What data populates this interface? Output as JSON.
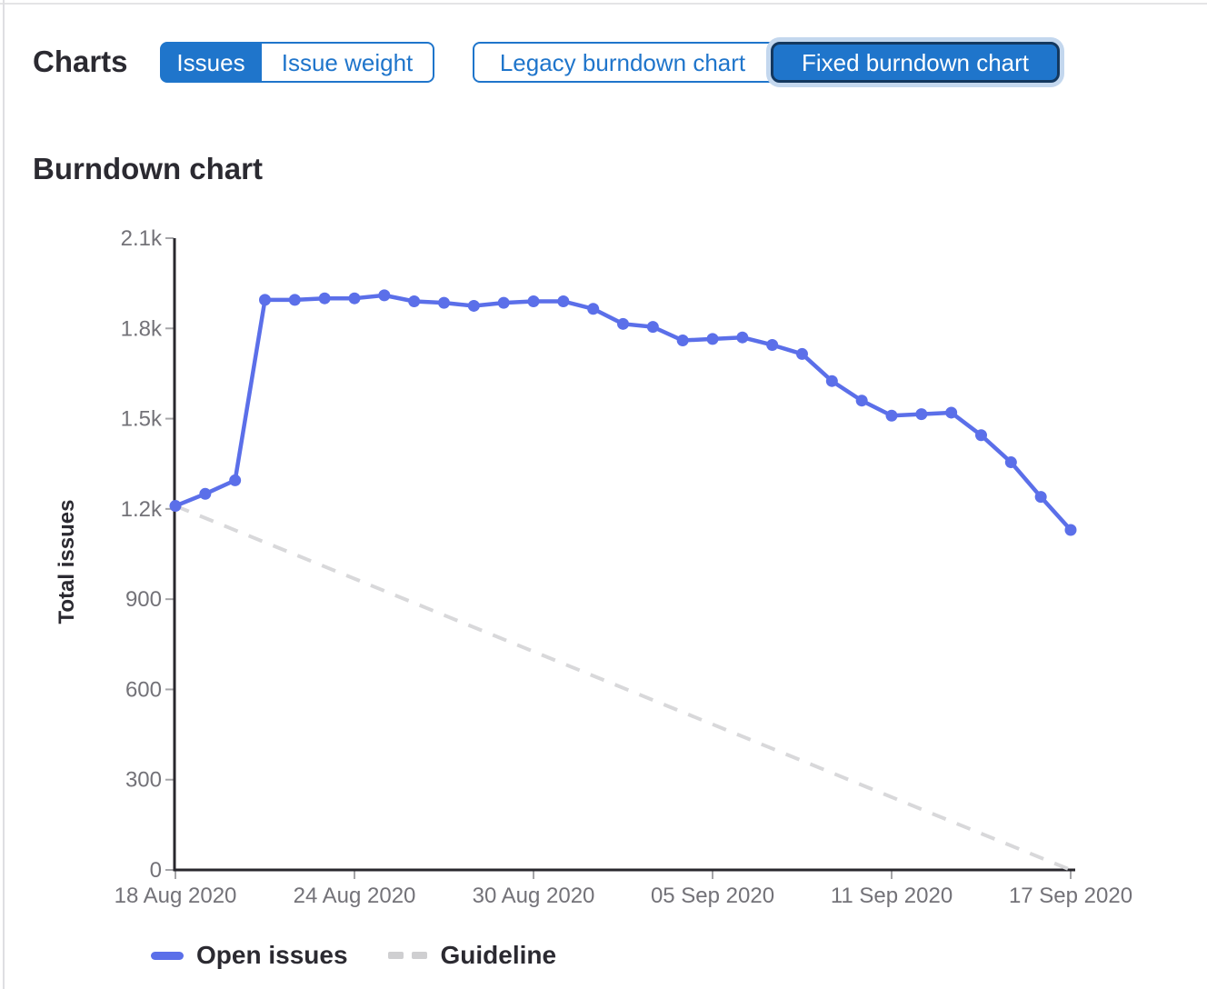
{
  "header": {
    "title": "Charts",
    "metric_toggle": {
      "options": [
        {
          "label": "Issues",
          "selected": true
        },
        {
          "label": "Issue weight",
          "selected": false
        }
      ]
    },
    "version_toggle": {
      "options": [
        {
          "label": "Legacy burndown chart",
          "selected": false
        },
        {
          "label": "Fixed burndown chart",
          "selected": true
        }
      ]
    }
  },
  "chart": {
    "title": "Burndown chart"
  },
  "legend": [
    {
      "label": "Open issues",
      "style": "solid"
    },
    {
      "label": "Guideline",
      "style": "dashed"
    }
  ],
  "colors": {
    "open_issues_line": "#5b6fe9",
    "guideline_line": "#d8d8da",
    "selected_button_bg": "#1f75cb",
    "button_blue": "#1f75cb",
    "focused_button_border": "#14385f",
    "focus_ring": "#c3d7ee",
    "axis_line": "#28272d",
    "tick_mark": "#a5a5a8",
    "tick_label": "#737278",
    "heading_text": "#2b2a31"
  },
  "chart_data": {
    "type": "line",
    "title": "Burndown chart",
    "xlabel": "",
    "ylabel": "Total issues",
    "ylim": [
      0,
      2100
    ],
    "grid": false,
    "legend_position": "bottom",
    "y_ticks": [
      {
        "value": 0,
        "label": "0"
      },
      {
        "value": 300,
        "label": "300"
      },
      {
        "value": 600,
        "label": "600"
      },
      {
        "value": 900,
        "label": "900"
      },
      {
        "value": 1200,
        "label": "1.2k"
      },
      {
        "value": 1500,
        "label": "1.5k"
      },
      {
        "value": 1800,
        "label": "1.8k"
      },
      {
        "value": 2100,
        "label": "2.1k"
      }
    ],
    "x_tick_indices": [
      0,
      6,
      12,
      18,
      24,
      30
    ],
    "x_tick_labels": [
      "18 Aug 2020",
      "24 Aug 2020",
      "30 Aug 2020",
      "05 Sep 2020",
      "11 Sep 2020",
      "17 Sep 2020"
    ],
    "dates": [
      "18 Aug 2020",
      "19 Aug 2020",
      "20 Aug 2020",
      "21 Aug 2020",
      "22 Aug 2020",
      "23 Aug 2020",
      "24 Aug 2020",
      "25 Aug 2020",
      "26 Aug 2020",
      "27 Aug 2020",
      "28 Aug 2020",
      "29 Aug 2020",
      "30 Aug 2020",
      "31 Aug 2020",
      "01 Sep 2020",
      "02 Sep 2020",
      "03 Sep 2020",
      "04 Sep 2020",
      "05 Sep 2020",
      "06 Sep 2020",
      "07 Sep 2020",
      "08 Sep 2020",
      "09 Sep 2020",
      "10 Sep 2020",
      "11 Sep 2020",
      "12 Sep 2020",
      "13 Sep 2020",
      "14 Sep 2020",
      "15 Sep 2020",
      "16 Sep 2020",
      "17 Sep 2020"
    ],
    "series": [
      {
        "name": "Open issues",
        "style": "solid",
        "values": [
          1210,
          1250,
          1295,
          1895,
          1895,
          1900,
          1900,
          1910,
          1890,
          1885,
          1875,
          1885,
          1890,
          1890,
          1865,
          1815,
          1805,
          1760,
          1765,
          1770,
          1745,
          1715,
          1625,
          1560,
          1510,
          1515,
          1520,
          1445,
          1355,
          1240,
          1130
        ]
      },
      {
        "name": "Guideline",
        "style": "dashed",
        "shape": "linear",
        "endpoints": {
          "start": 1210,
          "end": 0
        }
      }
    ]
  }
}
